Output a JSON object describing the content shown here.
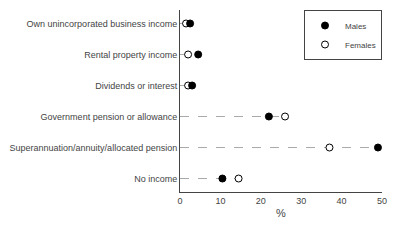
{
  "chart_data": {
    "type": "dot",
    "orientation": "horizontal",
    "xlabel": "%",
    "categories": [
      "Own unincorporated business income",
      "Rental property income",
      "Dividends or interest",
      "Government pension or allowance",
      "Superannuation/annuity/allocated pension",
      "No income"
    ],
    "series": [
      {
        "name": "Males",
        "color": "black",
        "marker": "filled",
        "values": [
          2.5,
          4.5,
          3.0,
          22.0,
          49.0,
          10.5
        ]
      },
      {
        "name": "Females",
        "color": "black",
        "marker": "open",
        "values": [
          1.5,
          2.0,
          2.0,
          26.0,
          37.0,
          14.5
        ]
      }
    ],
    "xlim": [
      0,
      50
    ],
    "xticks": [
      0,
      10,
      20,
      30,
      40,
      50
    ],
    "line_style": "dash",
    "color": "#aaaaaa",
    "legend": "upper right",
    "grid": false
  }
}
